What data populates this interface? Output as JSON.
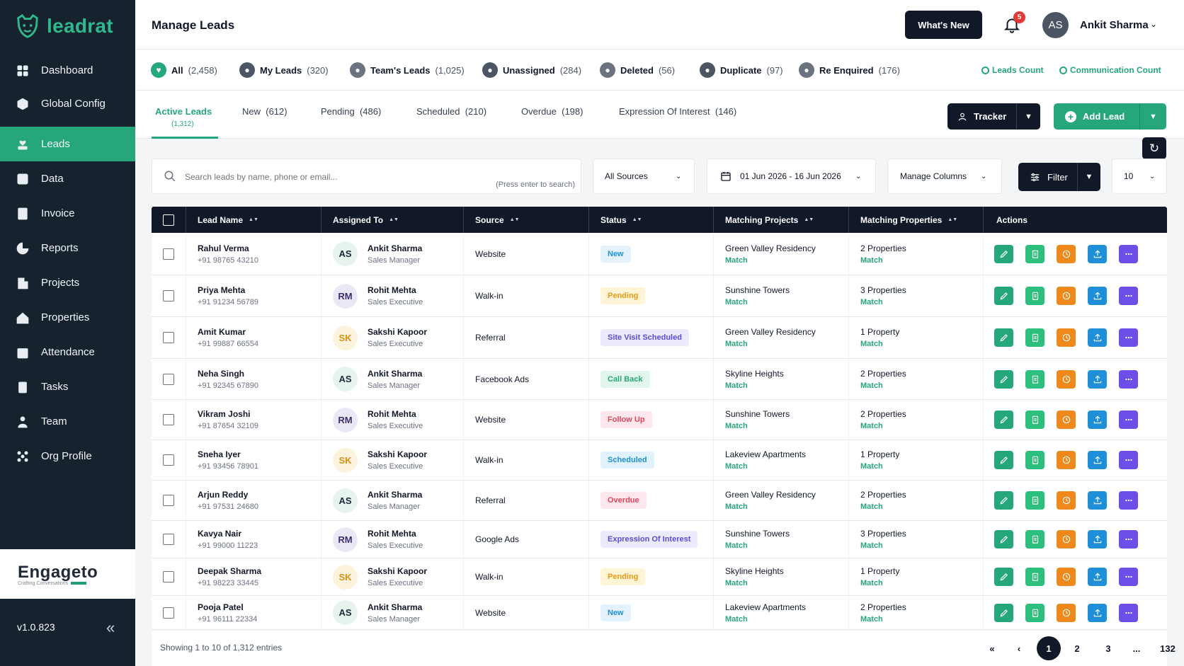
{
  "app": {
    "logo_text": "leadrat",
    "version": "v1.0.823",
    "brand_name": "Engageto",
    "brand_sub": "Crafting Conversations"
  },
  "sidebar": {
    "items": [
      {
        "label": "Dashboard",
        "icon": "grid-icon"
      },
      {
        "label": "Global Config",
        "icon": "hexagon-icon"
      },
      {
        "label": "Leads",
        "icon": "heart-hand-icon",
        "active": true
      },
      {
        "label": "Data",
        "icon": "data-icon"
      },
      {
        "label": "Invoice",
        "icon": "dollar-icon"
      },
      {
        "label": "Reports",
        "icon": "pie-icon"
      },
      {
        "label": "Projects",
        "icon": "building-icon"
      },
      {
        "label": "Properties",
        "icon": "house-icon"
      },
      {
        "label": "Attendance",
        "icon": "calendar-check-icon"
      },
      {
        "label": "Tasks",
        "icon": "clipboard-icon"
      },
      {
        "label": "Team",
        "icon": "team-icon"
      },
      {
        "label": "Org Profile",
        "icon": "org-icon"
      }
    ]
  },
  "header": {
    "title": "Manage Leads",
    "whats_new": "What's New",
    "notif_count": "5",
    "avatar_initials": "AS",
    "user_name": "Ankit Sharma"
  },
  "categories": [
    {
      "label": "All",
      "count": "(2,458)",
      "color": "#26a77a"
    },
    {
      "label": "My Leads",
      "count": "(320)",
      "color": "#4b5563"
    },
    {
      "label": "Team's Leads",
      "count": "(1,025)",
      "color": "#6b7280"
    },
    {
      "label": "Unassigned",
      "count": "(284)",
      "color": "#4b5563"
    },
    {
      "label": "Deleted",
      "count": "(56)",
      "color": "#6b7280"
    },
    {
      "label": "Duplicate",
      "count": "(97)",
      "color": "#4b5563"
    },
    {
      "label": "Re Enquired",
      "count": "(176)",
      "color": "#6b7280"
    }
  ],
  "count_links": {
    "leads": "Leads Count",
    "communication": "Communication Count"
  },
  "tabs": [
    {
      "label": "Active Leads",
      "count": "(1,312)",
      "active": true
    },
    {
      "label": "New",
      "count": "(612)"
    },
    {
      "label": "Pending",
      "count": "(486)"
    },
    {
      "label": "Scheduled",
      "count": "(210)"
    },
    {
      "label": "Overdue",
      "count": "(198)"
    },
    {
      "label": "Expression Of Interest",
      "count": "(146)"
    }
  ],
  "actions": {
    "tracker": "Tracker",
    "add_lead": "Add Lead"
  },
  "filters": {
    "search_placeholder": "Search leads by name, phone or email...",
    "search_hint": "(Press enter to search)",
    "sources": "All Sources",
    "date_range": "01 Jun 2026 - 16 Jun 2026",
    "manage_columns": "Manage Columns",
    "filter": "Filter",
    "page_size": "10"
  },
  "table": {
    "columns": [
      "Lead Name",
      "Assigned To",
      "Source",
      "Status",
      "Matching Projects",
      "Matching Properties",
      "Actions"
    ],
    "match_label": "Match",
    "rows": [
      {
        "name": "Rahul Verma",
        "phone": "+91 98765 43210",
        "initials": "AS",
        "agent": "Ankit Sharma",
        "role": "Sales Manager",
        "source": "Website",
        "status": "New",
        "status_bg": "#e3f2fd",
        "status_fg": "#1f8fd8",
        "project": "Green Valley Residency",
        "properties": "2 Properties"
      },
      {
        "name": "Priya Mehta",
        "phone": "+91 91234 56789",
        "initials": "RM",
        "agent": "Rohit Mehta",
        "role": "Sales Executive",
        "source": "Walk-in",
        "status": "Pending",
        "status_bg": "#fff4d6",
        "status_fg": "#e39b15",
        "project": "Sunshine Towers",
        "properties": "3 Properties"
      },
      {
        "name": "Amit Kumar",
        "phone": "+91 99887 66554",
        "initials": "SK",
        "agent": "Sakshi Kapoor",
        "role": "Sales Executive",
        "source": "Referral",
        "status": "Site Visit Scheduled",
        "status_bg": "#eceafd",
        "status_fg": "#5b4bdb",
        "project": "Green Valley Residency",
        "properties": "1 Property"
      },
      {
        "name": "Neha Singh",
        "phone": "+91 92345 67890",
        "initials": "AS",
        "agent": "Ankit Sharma",
        "role": "Sales Manager",
        "source": "Facebook Ads",
        "status": "Call Back",
        "status_bg": "#e3f6ec",
        "status_fg": "#26a77a",
        "project": "Skyline Heights",
        "properties": "2 Properties"
      },
      {
        "name": "Vikram Joshi",
        "phone": "+91 87654 32109",
        "initials": "RM",
        "agent": "Rohit Mehta",
        "role": "Sales Executive",
        "source": "Website",
        "status": "Follow Up",
        "status_bg": "#fde7ec",
        "status_fg": "#e0455c",
        "project": "Sunshine Towers",
        "properties": "2 Properties"
      },
      {
        "name": "Sneha Iyer",
        "phone": "+91 93456 78901",
        "initials": "SK",
        "agent": "Sakshi Kapoor",
        "role": "Sales Executive",
        "source": "Walk-in",
        "status": "Scheduled",
        "status_bg": "#e0f2fd",
        "status_fg": "#1f8fd8",
        "project": "Lakeview Apartments",
        "properties": "1 Property"
      },
      {
        "name": "Arjun Reddy",
        "phone": "+91 97531 24680",
        "initials": "AS",
        "agent": "Ankit Sharma",
        "role": "Sales Manager",
        "source": "Referral",
        "status": "Overdue",
        "status_bg": "#fde7ec",
        "status_fg": "#e0455c",
        "project": "Green Valley Residency",
        "properties": "2 Properties"
      },
      {
        "name": "Kavya Nair",
        "phone": "+91 99000 11223",
        "initials": "RM",
        "agent": "Rohit Mehta",
        "role": "Sales Executive",
        "source": "Google Ads",
        "status": "Expression Of Interest",
        "status_bg": "#eceafd",
        "status_fg": "#5b4bdb",
        "project": "Sunshine Towers",
        "properties": "3 Properties"
      },
      {
        "name": "Deepak Sharma",
        "phone": "+91 98223 33445",
        "initials": "SK",
        "agent": "Sakshi Kapoor",
        "role": "Sales Executive",
        "source": "Walk-in",
        "status": "Pending",
        "status_bg": "#fff4d6",
        "status_fg": "#e39b15",
        "project": "Skyline Heights",
        "properties": "1 Property"
      },
      {
        "name": "Pooja Patel",
        "phone": "+91 96111 22334",
        "initials": "AS",
        "agent": "Ankit Sharma",
        "role": "Sales Manager",
        "source": "Website",
        "status": "New",
        "status_bg": "#e3f2fd",
        "status_fg": "#1f8fd8",
        "project": "Lakeview Apartments",
        "properties": "2 Properties"
      }
    ]
  },
  "pagination": {
    "showing": "Showing 1 to 10 of 1,312 entries",
    "pages": [
      "«",
      "‹",
      "1",
      "2",
      "3",
      "...",
      "132",
      "›",
      "»"
    ],
    "current": "1"
  }
}
